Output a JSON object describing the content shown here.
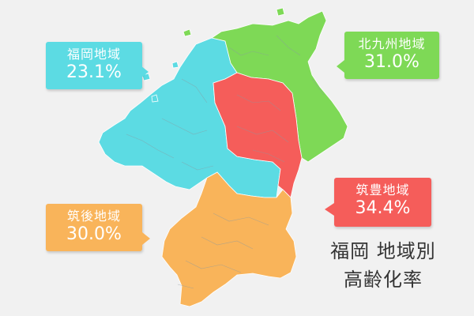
{
  "title_line1": "福岡 地域別",
  "title_line2": "高齢化率",
  "regions": [
    {
      "name": "福岡地域",
      "value": "23.1%",
      "color": "#5cdbe3"
    },
    {
      "name": "北九州地域",
      "value": "31.0%",
      "color": "#7ed956"
    },
    {
      "name": "筑豊地域",
      "value": "34.4%",
      "color": "#f55d5a"
    },
    {
      "name": "筑後地域",
      "value": "30.0%",
      "color": "#f9b45a"
    }
  ],
  "background": "#f1f1f1",
  "border_color": "#ffffff"
}
